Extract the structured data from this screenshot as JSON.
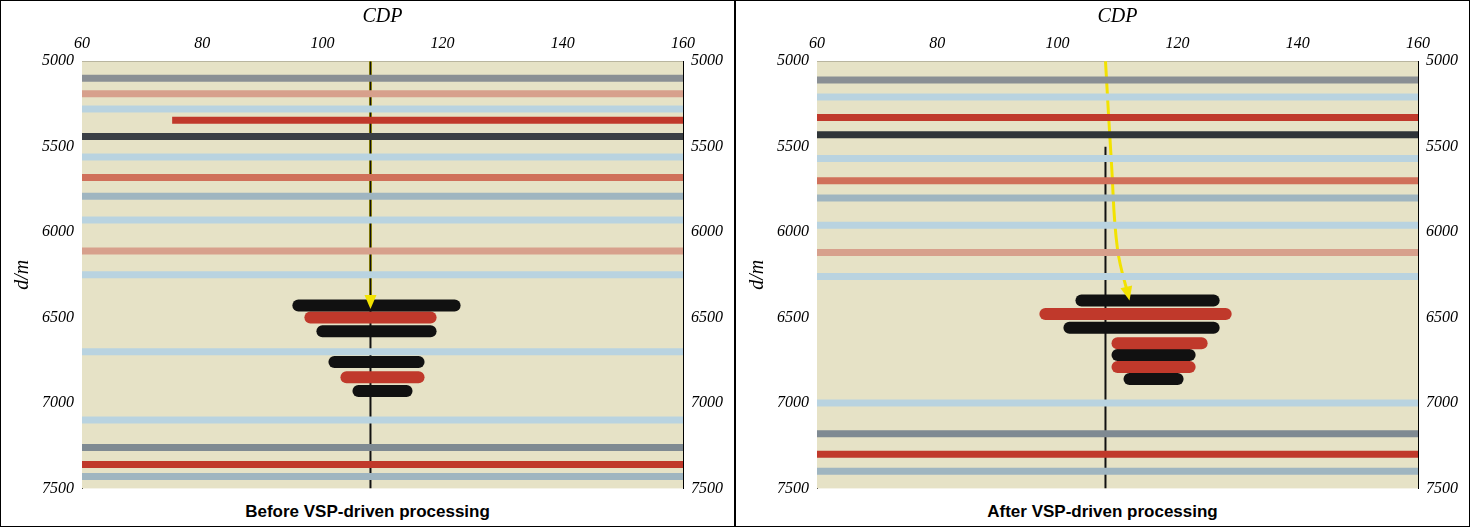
{
  "chart_data": [
    {
      "type": "line",
      "caption": "Before VSP-driven processing",
      "xlabel": "CDP",
      "ylabel": "d/m",
      "xlim": [
        60,
        160
      ],
      "xticks": [
        60,
        80,
        100,
        120,
        140,
        160
      ],
      "ylim": [
        5000,
        7500
      ],
      "yticks": [
        5000,
        5500,
        6000,
        6500,
        7000,
        7500
      ],
      "y2lim": [
        5000,
        7500
      ],
      "y2ticks": [
        5000,
        5500,
        6000,
        6500,
        7000,
        7500
      ],
      "reflectors": [
        {
          "x": [
            60,
            160
          ],
          "values": [
            5100,
            5100
          ],
          "color": "#8a8f94"
        },
        {
          "x": [
            60,
            160
          ],
          "values": [
            5190,
            5190
          ],
          "color": "#d7a08c"
        },
        {
          "x": [
            60,
            160
          ],
          "values": [
            5280,
            5280
          ],
          "color": "#b9d3e0"
        },
        {
          "x": [
            75,
            160
          ],
          "values": [
            5345,
            5345
          ],
          "color": "#c0392b"
        },
        {
          "x": [
            60,
            160
          ],
          "values": [
            5440,
            5440
          ],
          "color": "#3a3f44"
        },
        {
          "x": [
            60,
            160
          ],
          "values": [
            5560,
            5560
          ],
          "color": "#b9d3e0"
        },
        {
          "x": [
            60,
            160
          ],
          "values": [
            5680,
            5680
          ],
          "color": "#d0705a"
        },
        {
          "x": [
            60,
            160
          ],
          "values": [
            5790,
            5790
          ],
          "color": "#9fb5c0"
        },
        {
          "x": [
            60,
            160
          ],
          "values": [
            5930,
            5930
          ],
          "color": "#b9d3e0"
        },
        {
          "x": [
            60,
            160
          ],
          "values": [
            6110,
            6110
          ],
          "color": "#d7a08c"
        },
        {
          "x": [
            60,
            160
          ],
          "values": [
            6250,
            6250
          ],
          "color": "#b9d3e0"
        },
        {
          "x": [
            60,
            160
          ],
          "values": [
            6700,
            6700
          ],
          "color": "#b9d3e0"
        },
        {
          "x": [
            60,
            160
          ],
          "values": [
            7100,
            7100
          ],
          "color": "#b9d3e0"
        },
        {
          "x": [
            60,
            160
          ],
          "values": [
            7260,
            7260
          ],
          "color": "#7f8a92"
        },
        {
          "x": [
            60,
            160
          ],
          "values": [
            7360,
            7360
          ],
          "color": "#c0392b"
        },
        {
          "x": [
            60,
            160
          ],
          "values": [
            7430,
            7430
          ],
          "color": "#9fb5c0"
        }
      ],
      "events": [
        {
          "x": [
            96,
            122
          ],
          "values": [
            6430,
            6430
          ],
          "color": "#111111"
        },
        {
          "x": [
            98,
            118
          ],
          "values": [
            6500,
            6500
          ],
          "color": "#c0392b"
        },
        {
          "x": [
            100,
            118
          ],
          "values": [
            6580,
            6580
          ],
          "color": "#111111"
        },
        {
          "x": [
            102,
            116
          ],
          "values": [
            6760,
            6760
          ],
          "color": "#111111"
        },
        {
          "x": [
            104,
            116
          ],
          "values": [
            6850,
            6850
          ],
          "color": "#c0392b"
        },
        {
          "x": [
            106,
            114
          ],
          "values": [
            6930,
            6930
          ],
          "color": "#111111"
        }
      ],
      "well": {
        "x": [
          108,
          108
        ],
        "values": [
          5000,
          7500
        ],
        "color": "#111111"
      },
      "arrow": {
        "x": [
          108,
          108
        ],
        "values": [
          5000,
          6450
        ],
        "color": "#f2e200"
      }
    },
    {
      "type": "line",
      "caption": "After VSP-driven processing",
      "xlabel": "CDP",
      "ylabel": "d/m",
      "xlim": [
        60,
        160
      ],
      "xticks": [
        60,
        80,
        100,
        120,
        140,
        160
      ],
      "ylim": [
        5000,
        7500
      ],
      "yticks": [
        5000,
        5500,
        6000,
        6500,
        7000,
        7500
      ],
      "y2lim": [
        5000,
        7500
      ],
      "y2ticks": [
        5000,
        5500,
        6000,
        6500,
        7000,
        7500
      ],
      "reflectors": [
        {
          "x": [
            60,
            160
          ],
          "values": [
            5110,
            5110
          ],
          "color": "#8a8f94"
        },
        {
          "x": [
            60,
            160
          ],
          "values": [
            5210,
            5210
          ],
          "color": "#b9d3e0"
        },
        {
          "x": [
            60,
            160
          ],
          "values": [
            5330,
            5330
          ],
          "color": "#c0392b"
        },
        {
          "x": [
            60,
            160
          ],
          "values": [
            5430,
            5430
          ],
          "color": "#2f3438"
        },
        {
          "x": [
            60,
            160
          ],
          "values": [
            5570,
            5570
          ],
          "color": "#b9d3e0"
        },
        {
          "x": [
            60,
            160
          ],
          "values": [
            5700,
            5700
          ],
          "color": "#d0705a"
        },
        {
          "x": [
            60,
            160
          ],
          "values": [
            5800,
            5800
          ],
          "color": "#9fb5c0"
        },
        {
          "x": [
            60,
            160
          ],
          "values": [
            5960,
            5960
          ],
          "color": "#b9d3e0"
        },
        {
          "x": [
            60,
            160
          ],
          "values": [
            6120,
            6120
          ],
          "color": "#d7a08c"
        },
        {
          "x": [
            60,
            160
          ],
          "values": [
            6260,
            6260
          ],
          "color": "#b9d3e0"
        },
        {
          "x": [
            60,
            160
          ],
          "values": [
            7000,
            7000
          ],
          "color": "#b9d3e0"
        },
        {
          "x": [
            60,
            160
          ],
          "values": [
            7180,
            7180
          ],
          "color": "#7f8a92"
        },
        {
          "x": [
            60,
            160
          ],
          "values": [
            7300,
            7300
          ],
          "color": "#c0392b"
        },
        {
          "x": [
            60,
            160
          ],
          "values": [
            7400,
            7400
          ],
          "color": "#9fb5c0"
        }
      ],
      "events": [
        {
          "x": [
            104,
            126
          ],
          "values": [
            6400,
            6400
          ],
          "color": "#111111"
        },
        {
          "x": [
            98,
            128
          ],
          "values": [
            6480,
            6480
          ],
          "color": "#c0392b"
        },
        {
          "x": [
            102,
            126
          ],
          "values": [
            6560,
            6560
          ],
          "color": "#111111"
        },
        {
          "x": [
            110,
            124
          ],
          "values": [
            6650,
            6650
          ],
          "color": "#c0392b"
        },
        {
          "x": [
            110,
            122
          ],
          "values": [
            6720,
            6720
          ],
          "color": "#111111"
        },
        {
          "x": [
            110,
            122
          ],
          "values": [
            6790,
            6790
          ],
          "color": "#c0392b"
        },
        {
          "x": [
            112,
            120
          ],
          "values": [
            6860,
            6860
          ],
          "color": "#111111"
        }
      ],
      "well": {
        "x": [
          108,
          108
        ],
        "values": [
          5500,
          7500
        ],
        "color": "#111111"
      },
      "arrow": {
        "x": [
          108,
          109,
          110,
          112
        ],
        "values": [
          5000,
          5600,
          6100,
          6400
        ],
        "color": "#f2e200"
      }
    }
  ]
}
